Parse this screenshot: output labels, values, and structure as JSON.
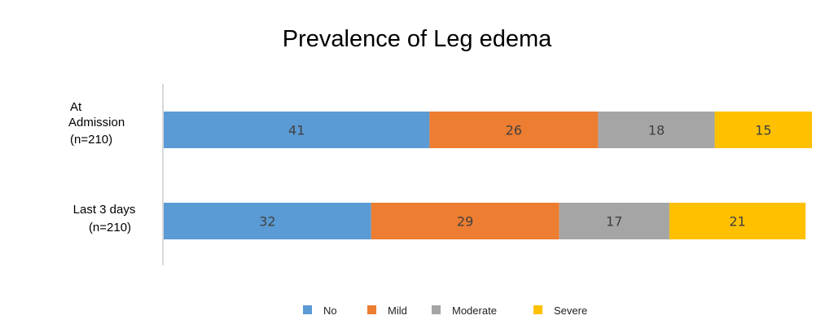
{
  "chart_data": {
    "type": "bar",
    "orientation": "horizontal",
    "stacked": "100%",
    "title": "Prevalence of Leg edema",
    "categories": [
      [
        "At",
        "Admission",
        "(n=210)"
      ],
      [
        "Last 3 days",
        "(n=210)"
      ]
    ],
    "series": [
      {
        "name": "No",
        "values": [
          41,
          32
        ],
        "color": "#5b9bd5"
      },
      {
        "name": "Mild",
        "values": [
          26,
          29
        ],
        "color": "#ed7d31"
      },
      {
        "name": "Moderate",
        "values": [
          18,
          17
        ],
        "color": "#a5a5a5"
      },
      {
        "name": "Severe",
        "values": [
          15,
          21
        ],
        "color": "#ffc000"
      }
    ],
    "xlim": [
      0,
      100
    ],
    "grid": false,
    "legend": "bottom",
    "data_labels": true
  }
}
